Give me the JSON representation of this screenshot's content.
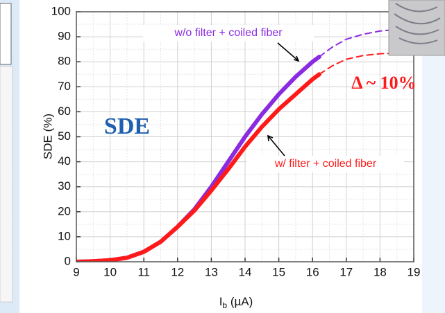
{
  "chart_data": {
    "type": "line",
    "ylabel": "SDE (%)",
    "xlabel": {
      "main": "I",
      "subscript": "b",
      "unit": " (µA)"
    },
    "xlim": [
      9,
      19
    ],
    "xticks": [
      9,
      10,
      11,
      12,
      13,
      14,
      15,
      16,
      17,
      18,
      19
    ],
    "ylim": [
      0,
      100
    ],
    "yticks": [
      0,
      10,
      20,
      30,
      40,
      50,
      60,
      70,
      80,
      90,
      100
    ],
    "grid": true,
    "series": [
      {
        "color": "#8a2be2",
        "dash": false,
        "x": [
          9,
          9.5,
          10,
          10.5,
          11,
          11.5,
          12,
          12.5,
          13,
          13.5,
          14,
          14.5,
          15,
          15.5,
          16,
          16.2
        ],
        "values": [
          0,
          0.2,
          0.6,
          1.6,
          4,
          8,
          14,
          21,
          30,
          40,
          50,
          59,
          67,
          74,
          80,
          82
        ]
      },
      {
        "color": "#ff1a1a",
        "dash": false,
        "x": [
          9,
          9.5,
          10,
          10.5,
          11,
          11.5,
          12,
          12.5,
          13,
          13.5,
          14,
          14.5,
          15,
          15.5,
          16,
          16.2
        ],
        "values": [
          0,
          0.2,
          0.6,
          1.6,
          4,
          8,
          14,
          20.5,
          28.5,
          37,
          46,
          54,
          61,
          67,
          73,
          75
        ]
      },
      {
        "color": "#8a2be2",
        "dash": true,
        "x": [
          16.2,
          16.6,
          17,
          17.5,
          18,
          18.4
        ],
        "values": [
          82,
          86,
          89,
          91,
          92.3,
          92.8
        ]
      },
      {
        "color": "#ff1a1a",
        "dash": true,
        "x": [
          16.2,
          16.6,
          17,
          17.5,
          18,
          18.4
        ],
        "values": [
          75,
          78.5,
          81,
          82.5,
          83.2,
          83.4
        ]
      }
    ],
    "annotations": {
      "upper": "w/o filter + coiled fiber",
      "lower": "w/ filter + coiled fiber",
      "delta": "Δ ~ 10%",
      "label": "SDE"
    }
  }
}
